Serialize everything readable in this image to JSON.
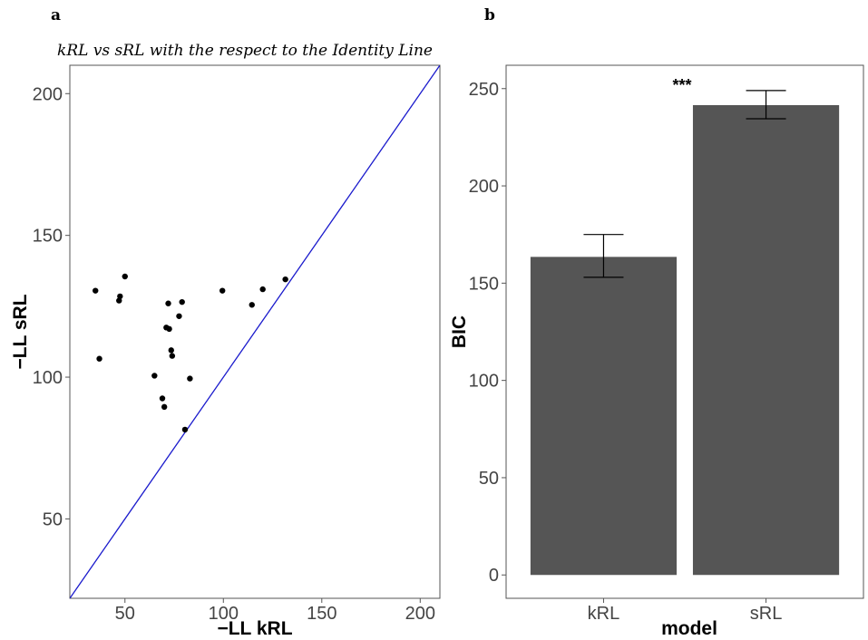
{
  "chart_data": [
    {
      "panel": "a",
      "type": "scatter",
      "title": "kRL vs sRL with the respect to the Identity Line",
      "xlabel": "−LL kRL",
      "ylabel": "−LL sRL",
      "xlim": [
        22,
        210
      ],
      "ylim": [
        22,
        210
      ],
      "xticks": [
        50,
        100,
        150,
        200
      ],
      "yticks": [
        50,
        100,
        150,
        200
      ],
      "grid": false,
      "identity_line": {
        "color": "#1a1acc",
        "slope": 1,
        "intercept": 0
      },
      "point_color": "#000000",
      "points": [
        {
          "x": 35,
          "y": 130.5
        },
        {
          "x": 37,
          "y": 106.5
        },
        {
          "x": 47,
          "y": 127
        },
        {
          "x": 47.5,
          "y": 128.5
        },
        {
          "x": 50,
          "y": 135.5
        },
        {
          "x": 65,
          "y": 100.5
        },
        {
          "x": 69,
          "y": 92.5
        },
        {
          "x": 70,
          "y": 89.5
        },
        {
          "x": 71,
          "y": 117.5
        },
        {
          "x": 72,
          "y": 126
        },
        {
          "x": 72.5,
          "y": 117
        },
        {
          "x": 73.5,
          "y": 109.5
        },
        {
          "x": 74,
          "y": 107.5
        },
        {
          "x": 77.5,
          "y": 121.5
        },
        {
          "x": 79,
          "y": 126.5
        },
        {
          "x": 80.5,
          "y": 81.5
        },
        {
          "x": 83,
          "y": 99.5
        },
        {
          "x": 99.5,
          "y": 130.5
        },
        {
          "x": 114.5,
          "y": 125.5
        },
        {
          "x": 120,
          "y": 131
        },
        {
          "x": 131.5,
          "y": 134.5
        }
      ]
    },
    {
      "panel": "b",
      "type": "bar",
      "categories": [
        "kRL",
        "sRL"
      ],
      "values": [
        163.5,
        241.5
      ],
      "error_low": [
        153,
        234.5
      ],
      "error_high": [
        175,
        249
      ],
      "bar_color": "#555555",
      "xlabel": "model",
      "ylabel": "BIC",
      "ylim": [
        -12,
        262
      ],
      "yticks": [
        0,
        50,
        100,
        150,
        200,
        250
      ],
      "grid": false,
      "annotation": "***"
    }
  ]
}
